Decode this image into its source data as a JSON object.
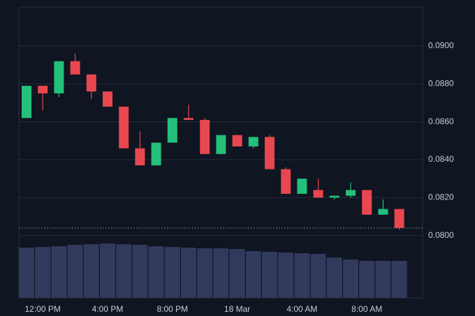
{
  "chart_data": {
    "type": "candlestick",
    "categories": [
      null,
      "12:00 PM",
      null,
      null,
      null,
      "4:00 PM",
      null,
      null,
      null,
      "8:00 PM",
      null,
      null,
      null,
      "18 Mar",
      null,
      null,
      null,
      "4:00 AM",
      null,
      null,
      null,
      "8:00 AM",
      null,
      null
    ],
    "open": [
      0.0862,
      0.0879,
      0.0875,
      0.0892,
      0.0885,
      0.0876,
      0.0868,
      0.0846,
      0.0837,
      0.0849,
      0.0862,
      0.0861,
      0.0843,
      0.0853,
      0.0847,
      0.0852,
      0.0835,
      0.0822,
      0.0824,
      0.082,
      0.0821,
      0.0824,
      0.0811,
      0.0814
    ],
    "high": [
      0.0879,
      0.0879,
      0.0892,
      0.0896,
      0.0885,
      0.0876,
      0.0868,
      0.0855,
      0.0849,
      0.0862,
      0.0869,
      0.0862,
      0.0853,
      0.0853,
      0.0852,
      0.0853,
      0.0836,
      0.083,
      0.083,
      0.0821,
      0.0828,
      0.0824,
      0.0819,
      0.0814
    ],
    "low": [
      0.0862,
      0.0866,
      0.0873,
      0.0885,
      0.0872,
      0.0868,
      0.0846,
      0.0837,
      0.0837,
      0.0849,
      0.0861,
      0.0843,
      0.0843,
      0.0847,
      0.0846,
      0.0835,
      0.0822,
      0.0822,
      0.082,
      0.0819,
      0.082,
      0.0811,
      0.0811,
      0.0803
    ],
    "close": [
      0.0879,
      0.0875,
      0.0892,
      0.0885,
      0.0876,
      0.0868,
      0.0846,
      0.0837,
      0.0849,
      0.0862,
      0.0861,
      0.0843,
      0.0853,
      0.0847,
      0.0852,
      0.0835,
      0.0822,
      0.083,
      0.082,
      0.0821,
      0.0824,
      0.0811,
      0.0814,
      0.0804
    ],
    "volume": [
      72,
      73,
      74,
      76,
      77,
      78,
      77,
      76,
      74,
      73,
      72,
      71,
      71,
      70,
      67,
      66,
      65,
      64,
      63,
      58,
      55,
      53,
      53,
      53
    ],
    "up_color": "#22c07a",
    "down_color": "#e8474f",
    "volume_color": "#313a5c",
    "ylim": [
      0.07671,
      0.09206
    ],
    "yticks": [
      {
        "value": 0.08,
        "label": "0.0800"
      },
      {
        "value": 0.082,
        "label": "0.0820"
      },
      {
        "value": 0.084,
        "label": "0.0840"
      },
      {
        "value": 0.086,
        "label": "0.0860"
      },
      {
        "value": 0.088,
        "label": "0.0880"
      },
      {
        "value": 0.09,
        "label": "0.0900"
      }
    ],
    "grid": true
  }
}
